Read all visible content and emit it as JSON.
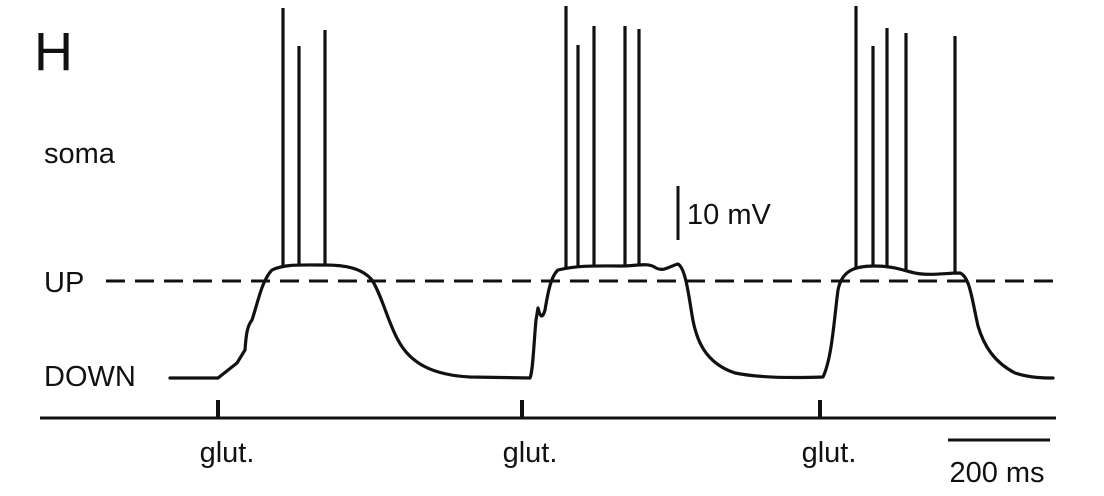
{
  "panel_label": "H",
  "trace_label": "soma",
  "levels": {
    "up_label": "UP",
    "down_label": "DOWN"
  },
  "scale_bars": {
    "voltage": "10 mV",
    "time": "200 ms"
  },
  "stimulus": {
    "label": "glut.",
    "count": 3,
    "markers": [
      "glut.",
      "glut.",
      "glut."
    ]
  },
  "colors": {
    "trace": "#111111",
    "background": "#ffffff"
  }
}
